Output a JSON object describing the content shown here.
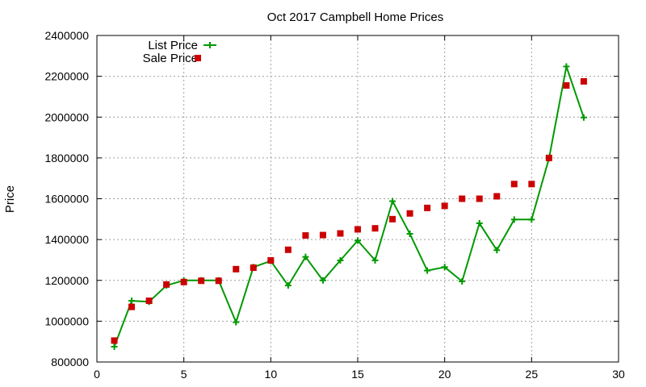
{
  "chart_data": {
    "type": "line",
    "title": "Oct 2017 Campbell Home Prices",
    "xlabel": "",
    "ylabel": "Price",
    "xlim": [
      0,
      30
    ],
    "ylim": [
      800000,
      2400000
    ],
    "x_ticks": [
      0,
      5,
      10,
      15,
      20,
      25,
      30
    ],
    "y_ticks": [
      800000,
      1000000,
      1200000,
      1400000,
      1600000,
      1800000,
      2000000,
      2200000,
      2400000
    ],
    "grid": true,
    "legend_position": "top-left",
    "series": [
      {
        "name": "List Price",
        "style": "line-with-plus-markers",
        "color": "#009900",
        "points": [
          [
            1,
            875000
          ],
          [
            2,
            1100000
          ],
          [
            3,
            1095000
          ],
          [
            4,
            1175000
          ],
          [
            5,
            1200000
          ],
          [
            6,
            1200000
          ],
          [
            7,
            1200000
          ],
          [
            8,
            995000
          ],
          [
            9,
            1265000
          ],
          [
            10,
            1295000
          ],
          [
            11,
            1175000
          ],
          [
            12,
            1315000
          ],
          [
            13,
            1200000
          ],
          [
            14,
            1298000
          ],
          [
            15,
            1395000
          ],
          [
            16,
            1298000
          ],
          [
            17,
            1588000
          ],
          [
            18,
            1428000
          ],
          [
            19,
            1248000
          ],
          [
            20,
            1265000
          ],
          [
            21,
            1195000
          ],
          [
            22,
            1480000
          ],
          [
            23,
            1348000
          ],
          [
            24,
            1498000
          ],
          [
            25,
            1498000
          ],
          [
            26,
            1798000
          ],
          [
            27,
            2248000
          ],
          [
            28,
            1998000
          ]
        ]
      },
      {
        "name": "Sale Price",
        "style": "square-markers",
        "color": "#cc0000",
        "points": [
          [
            1,
            905000
          ],
          [
            2,
            1070000
          ],
          [
            3,
            1100000
          ],
          [
            4,
            1180000
          ],
          [
            5,
            1192000
          ],
          [
            6,
            1198000
          ],
          [
            7,
            1198000
          ],
          [
            8,
            1255000
          ],
          [
            9,
            1262000
          ],
          [
            10,
            1298000
          ],
          [
            11,
            1350000
          ],
          [
            12,
            1420000
          ],
          [
            13,
            1422000
          ],
          [
            14,
            1430000
          ],
          [
            15,
            1450000
          ],
          [
            16,
            1455000
          ],
          [
            17,
            1500000
          ],
          [
            18,
            1528000
          ],
          [
            19,
            1555000
          ],
          [
            20,
            1565000
          ],
          [
            21,
            1600000
          ],
          [
            22,
            1600000
          ],
          [
            23,
            1612000
          ],
          [
            24,
            1672000
          ],
          [
            25,
            1672000
          ],
          [
            26,
            1800000
          ],
          [
            27,
            2155000
          ],
          [
            28,
            2175000
          ]
        ]
      }
    ]
  }
}
